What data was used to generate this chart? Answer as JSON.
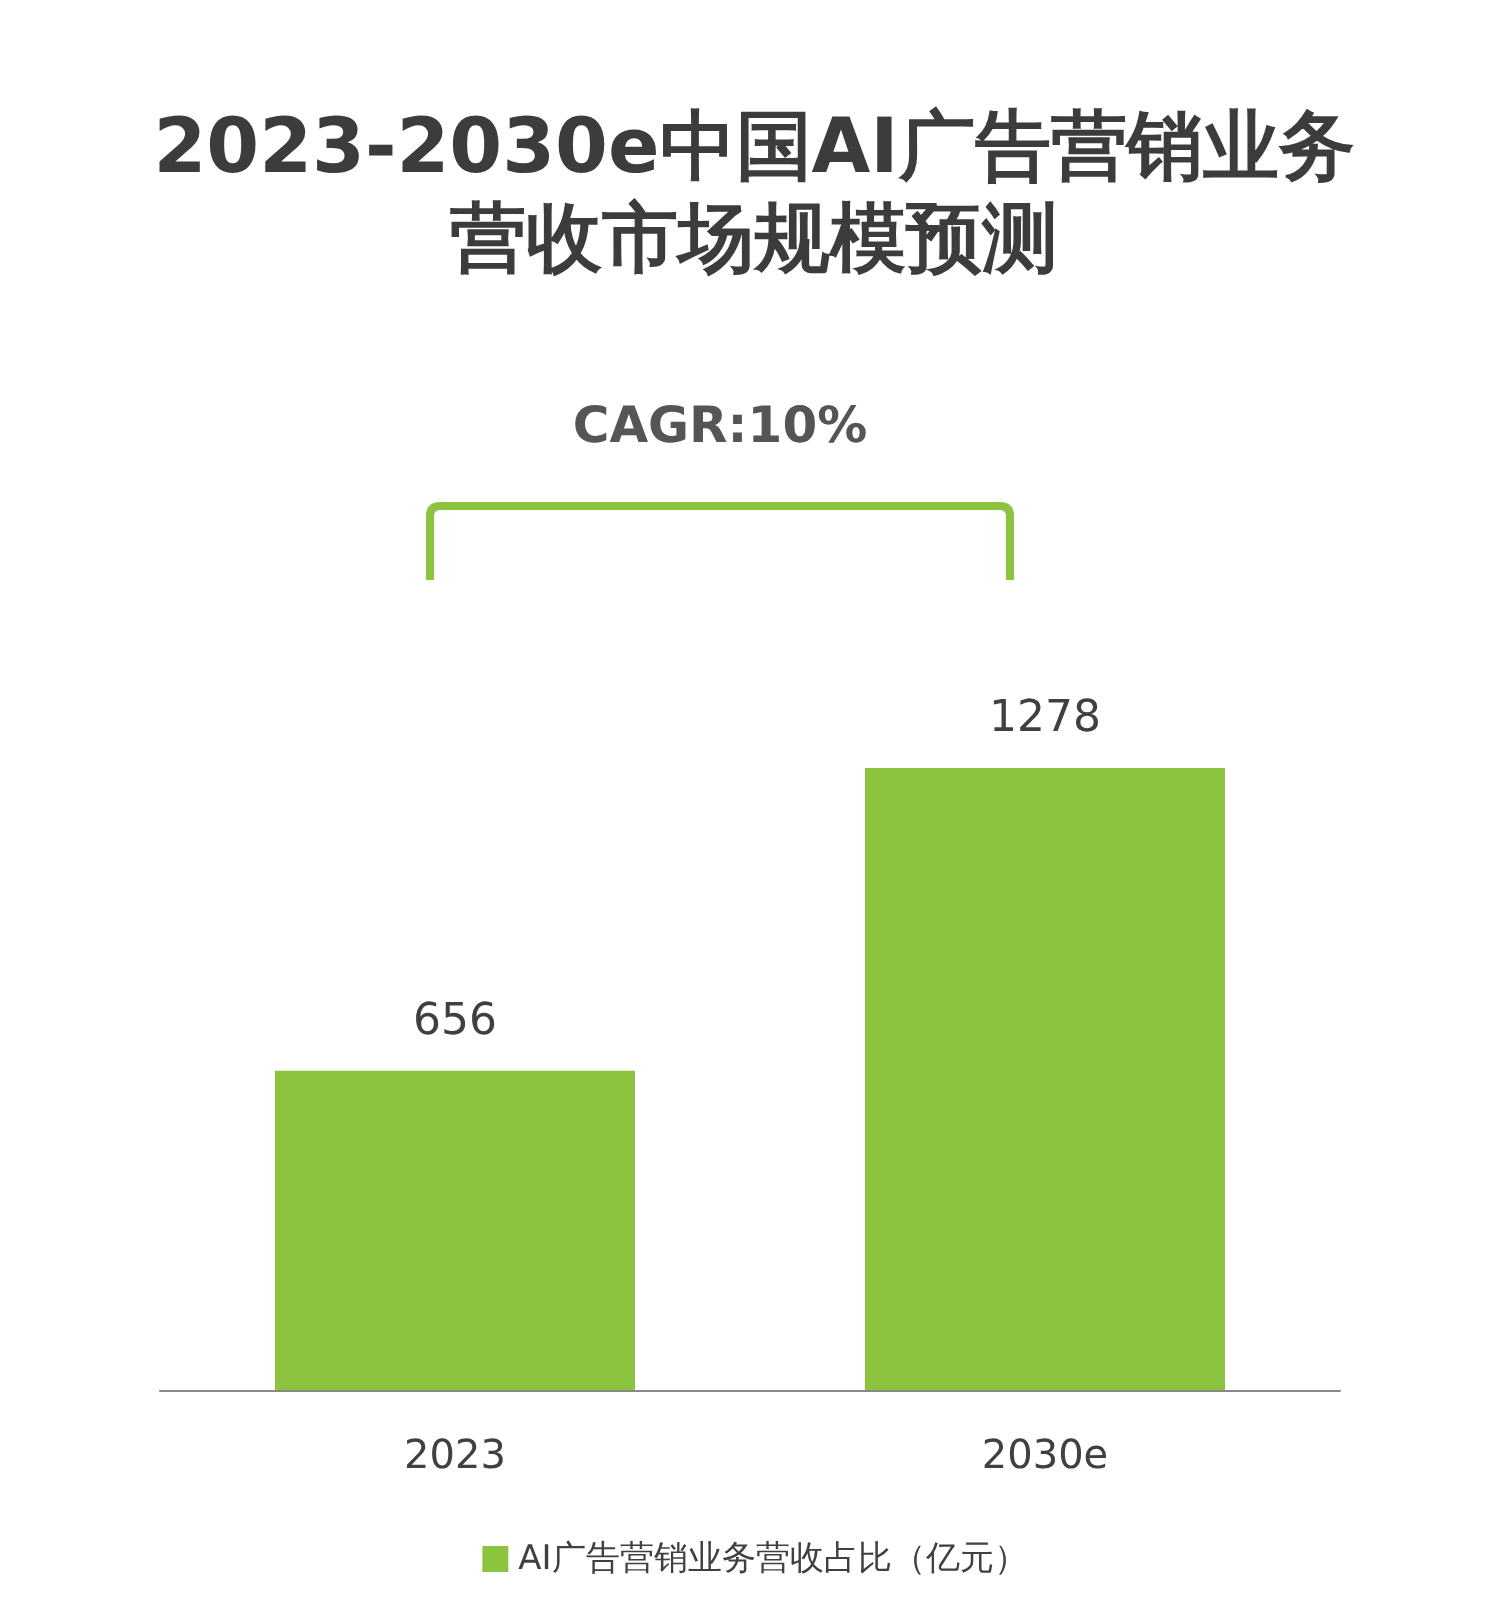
{
  "chart_data": {
    "type": "bar",
    "title": "2023-2030e中国AI广告营销业务营收市场规模预测",
    "categories": [
      "2023",
      "2030e"
    ],
    "series": [
      {
        "name": "AI广告营销业务营收占比（亿元）",
        "color": "#8cc43f",
        "values": [
          656,
          1278
        ]
      }
    ],
    "data_labels": true,
    "legend": "bottom",
    "annotations": [
      "CAGR:10%"
    ]
  }
}
